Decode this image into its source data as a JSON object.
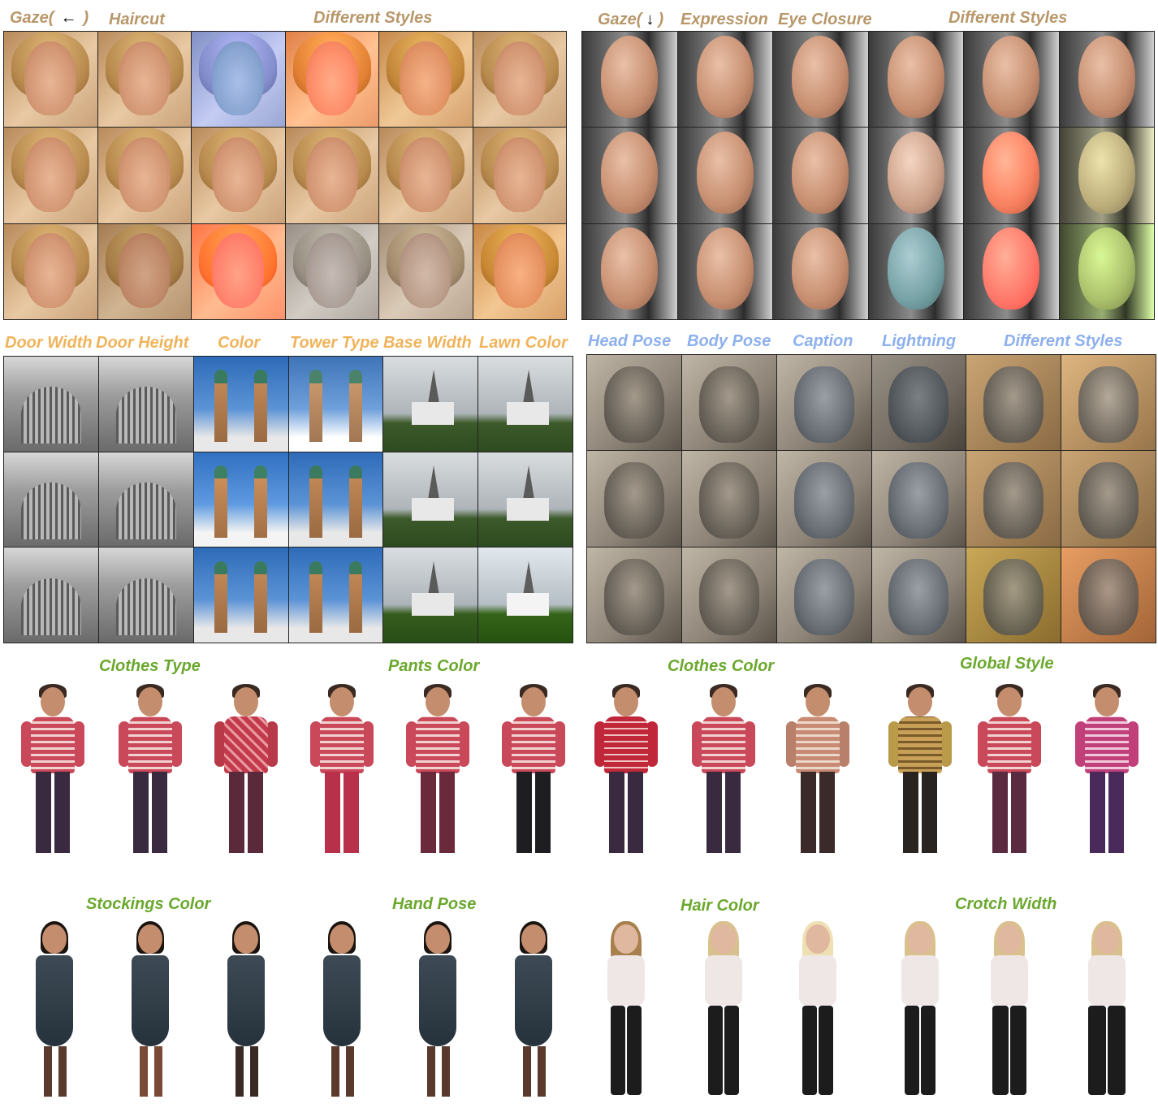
{
  "colors": {
    "faces_label": "#b8976a",
    "buildings_label": "#f0b35a",
    "cats_label": "#8db0ee",
    "fashion_label": "#6aa82e"
  },
  "faces_woman": {
    "labels": [
      "Gaze(",
      ")",
      "Haircut",
      "Different Styles"
    ],
    "arrow_icon": "left-arrow-icon"
  },
  "faces_man": {
    "labels": [
      "Gaze(",
      ")",
      "Expression",
      "Eye Closure",
      "Different Styles"
    ],
    "arrow_icon": "down-arrow-icon"
  },
  "buildings": {
    "labels": [
      "Door Width",
      "Door Height",
      "Color",
      "Tower Type",
      "Base Width",
      "Lawn Color"
    ]
  },
  "cats": {
    "labels": [
      "Head Pose",
      "Body Pose",
      "Caption",
      "Lightning",
      "Different Styles"
    ]
  },
  "fashion_row1": {
    "labels": [
      "Clothes Type",
      "Pants Color",
      "Clothes Color",
      "Global Style"
    ]
  },
  "fashion_row2": {
    "labels": [
      "Stockings Color",
      "Hand Pose",
      "Hair Color",
      "Crotch Width"
    ]
  }
}
